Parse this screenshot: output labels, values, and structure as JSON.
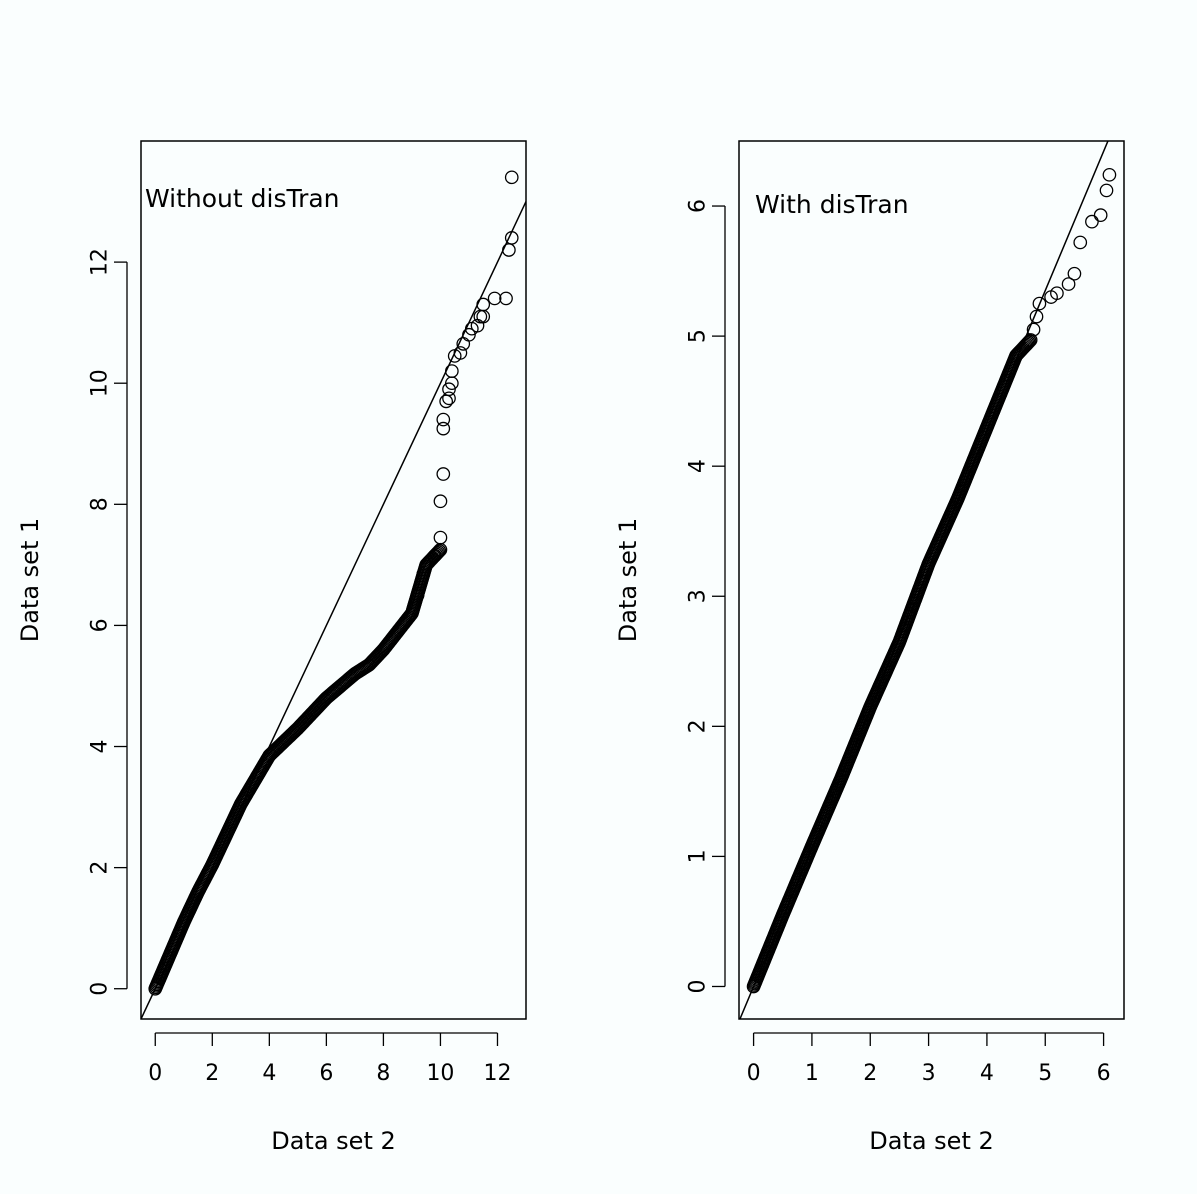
{
  "chart_data": [
    {
      "type": "scatter",
      "title": "",
      "annotation": "Without disTran",
      "xlabel": "Data set 2",
      "ylabel": "Data set 1",
      "xlim": [
        -0.5,
        13.0
      ],
      "ylim": [
        -0.5,
        14.0
      ],
      "xticks": [
        0,
        2,
        4,
        6,
        8,
        10,
        12
      ],
      "yticks": [
        0,
        2,
        4,
        6,
        8,
        10,
        12
      ],
      "grid": false,
      "reference_line": {
        "slope": 1,
        "intercept": 0
      },
      "series": [
        {
          "marker": "open-circle",
          "curve": [
            [
              0,
              0
            ],
            [
              0.5,
              0.55
            ],
            [
              1,
              1.1
            ],
            [
              1.5,
              1.6
            ],
            [
              2,
              2.05
            ],
            [
              2.5,
              2.55
            ],
            [
              3,
              3.05
            ],
            [
              3.5,
              3.45
            ],
            [
              4,
              3.85
            ],
            [
              5,
              4.3
            ],
            [
              6,
              4.8
            ],
            [
              7,
              5.2
            ],
            [
              7.5,
              5.35
            ],
            [
              8,
              5.6
            ],
            [
              8.5,
              5.9
            ],
            [
              9,
              6.2
            ],
            [
              9.5,
              7.0
            ],
            [
              10,
              7.25
            ]
          ],
          "points": [
            [
              9.2,
              6.5
            ],
            [
              9.4,
              6.85
            ],
            [
              9.8,
              7.15
            ],
            [
              10.0,
              7.45
            ],
            [
              10.0,
              8.05
            ],
            [
              10.1,
              8.5
            ],
            [
              10.1,
              9.25
            ],
            [
              10.1,
              9.4
            ],
            [
              10.2,
              9.7
            ],
            [
              10.3,
              9.75
            ],
            [
              10.3,
              9.9
            ],
            [
              10.4,
              10.0
            ],
            [
              10.4,
              10.2
            ],
            [
              10.5,
              10.45
            ],
            [
              10.7,
              10.5
            ],
            [
              10.8,
              10.65
            ],
            [
              11.0,
              10.8
            ],
            [
              11.1,
              10.9
            ],
            [
              11.3,
              10.95
            ],
            [
              11.4,
              11.1
            ],
            [
              11.5,
              11.1
            ],
            [
              11.5,
              11.3
            ],
            [
              11.9,
              11.4
            ],
            [
              12.3,
              11.4
            ],
            [
              12.4,
              12.2
            ],
            [
              12.5,
              12.4
            ],
            [
              12.5,
              13.4
            ]
          ]
        }
      ]
    },
    {
      "type": "scatter",
      "title": "",
      "annotation": "With disTran",
      "xlabel": "Data set 2",
      "ylabel": "Data set 1",
      "xlim": [
        -0.25,
        6.35
      ],
      "ylim": [
        -0.25,
        6.5
      ],
      "xticks": [
        0,
        1,
        2,
        3,
        4,
        5,
        6
      ],
      "yticks": [
        0,
        1,
        2,
        3,
        4,
        5,
        6
      ],
      "grid": false,
      "reference_line": {
        "slope": 1.07,
        "intercept": 0
      },
      "series": [
        {
          "marker": "open-circle",
          "curve": [
            [
              0,
              0
            ],
            [
              0.5,
              0.55
            ],
            [
              1,
              1.08
            ],
            [
              1.5,
              1.6
            ],
            [
              2,
              2.15
            ],
            [
              2.5,
              2.65
            ],
            [
              3,
              3.25
            ],
            [
              3.5,
              3.75
            ],
            [
              4,
              4.3
            ],
            [
              4.5,
              4.85
            ],
            [
              4.75,
              4.97
            ]
          ],
          "points": [
            [
              4.8,
              5.05
            ],
            [
              4.85,
              5.15
            ],
            [
              4.9,
              5.25
            ],
            [
              5.1,
              5.3
            ],
            [
              5.2,
              5.33
            ],
            [
              5.4,
              5.4
            ],
            [
              5.5,
              5.48
            ],
            [
              5.6,
              5.72
            ],
            [
              5.8,
              5.88
            ],
            [
              5.95,
              5.93
            ],
            [
              6.05,
              6.12
            ],
            [
              6.1,
              6.24
            ]
          ]
        }
      ]
    }
  ]
}
